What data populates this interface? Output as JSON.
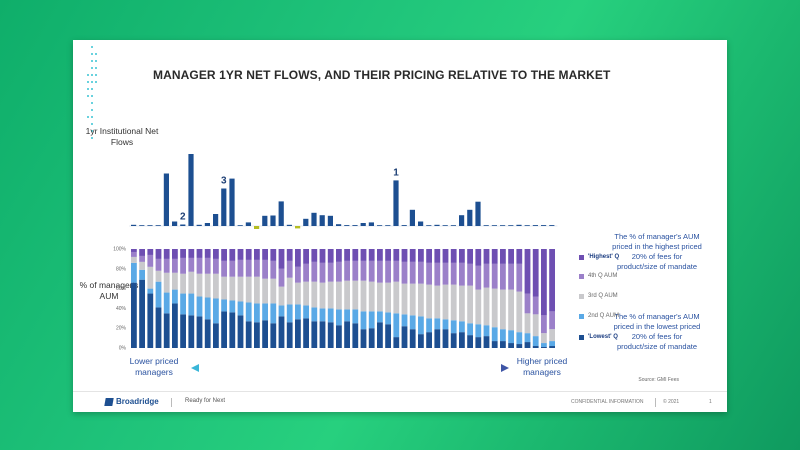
{
  "title": "MANAGER 1YR NET FLOWS, AND THEIR PRICING RELATIVE TO THE MARKET",
  "top_ylabel": "1yr Institutional Net Flows",
  "bottom_ylabel": "% of manager's AUM",
  "right_note_top": "The % of manager's AUM priced in the highest priced 20% of fees for product/size of mandate",
  "right_note_bottom": "The % of manager's AUM priced in the lowest priced 20% of fees for product/size of mandate",
  "arrow_left": "Lower priced managers",
  "arrow_right": "Higher priced managers",
  "source": "Source: GMI Fees",
  "footer": {
    "brand": "Broadridge",
    "tagline": "Ready for Next",
    "confidential": "CONFIDENTIAL INFORMATION",
    "copyright": "© 2021",
    "page": "1"
  },
  "colors": {
    "flow_positive": "#1d4f91",
    "flow_negative": "#b5bd22",
    "q_lowest": "#1d4f91",
    "q_2nd": "#5aa9e6",
    "q_3rd": "#c9c9cc",
    "q_4th": "#9b80c9",
    "q_highest": "#6e4fb2",
    "arrow": "#3e55a6"
  },
  "chart_data": [
    {
      "type": "bar",
      "title": "",
      "ylabel": "1yr Institutional Net Flows",
      "annotations": [
        {
          "label": "2",
          "index": 6
        },
        {
          "label": "3",
          "index": 11
        },
        {
          "label": "1",
          "index": 32
        }
      ],
      "values": [
        0.4,
        0.1,
        0.1,
        0.1,
        17.5,
        1.5,
        0.5,
        24.0,
        0.4,
        1.0,
        4.0,
        12.5,
        15.8,
        0.1,
        1.2,
        -1.0,
        3.4,
        3.5,
        8.2,
        0.4,
        -0.8,
        2.4,
        4.4,
        3.6,
        3.4,
        0.6,
        0.3,
        0.3,
        1.0,
        1.2,
        0.1,
        0.2,
        15.2,
        0.3,
        5.4,
        1.5,
        0.2,
        0.4,
        0.2,
        0.2,
        3.6,
        5.4,
        8.1,
        0.2,
        0.2,
        0.2,
        0.1,
        0.4,
        0.2,
        0.3,
        0.3,
        0.3
      ],
      "ylim": [
        -2,
        26
      ]
    },
    {
      "type": "bar",
      "stacked": true,
      "ylabel": "% of manager's AUM",
      "ylim": [
        0,
        100
      ],
      "yticks": [
        "0%",
        "20%",
        "40%",
        "60%",
        "80%",
        "100%"
      ],
      "series": [
        {
          "name": "'Lowest' Q",
          "values": [
            66,
            69,
            55,
            41,
            35,
            45,
            34,
            33,
            32,
            29,
            25,
            37,
            36,
            33,
            27,
            26,
            28,
            25,
            32,
            26,
            29,
            30,
            27,
            27,
            26,
            23,
            27,
            25,
            19,
            20,
            26,
            24,
            11,
            22,
            19,
            14,
            16,
            19,
            19,
            15,
            16,
            13,
            11,
            12,
            7,
            7,
            5,
            4,
            6,
            2,
            1,
            2
          ]
        },
        {
          "name": "2nd Q AUM",
          "values": [
            20,
            10,
            5,
            26,
            21,
            14,
            21,
            22,
            20,
            22,
            25,
            12,
            12,
            14,
            19,
            19,
            17,
            20,
            11,
            18,
            15,
            13,
            14,
            13,
            14,
            16,
            12,
            14,
            18,
            17,
            11,
            12,
            24,
            12,
            14,
            18,
            14,
            11,
            10,
            13,
            11,
            12,
            13,
            11,
            14,
            12,
            13,
            12,
            9,
            10,
            4,
            5
          ]
        },
        {
          "name": "3rd Q AUM",
          "values": [
            6,
            8,
            22,
            11,
            20,
            17,
            20,
            22,
            23,
            24,
            25,
            23,
            24,
            25,
            26,
            27,
            25,
            25,
            19,
            27,
            22,
            24,
            26,
            26,
            27,
            28,
            29,
            29,
            31,
            30,
            29,
            30,
            32,
            31,
            32,
            33,
            34,
            33,
            35,
            36,
            36,
            38,
            35,
            38,
            39,
            40,
            41,
            41,
            20,
            22,
            10,
            12
          ]
        },
        {
          "name": "4th Q AUM",
          "values": [
            5,
            6,
            12,
            12,
            14,
            14,
            16,
            14,
            16,
            16,
            15,
            16,
            16,
            17,
            17,
            17,
            19,
            18,
            18,
            17,
            16,
            18,
            20,
            20,
            19,
            20,
            20,
            20,
            20,
            21,
            22,
            22,
            21,
            22,
            22,
            22,
            22,
            23,
            22,
            22,
            23,
            22,
            24,
            24,
            25,
            26,
            26,
            28,
            20,
            18,
            18,
            18
          ]
        },
        {
          "name": "'Highest' Q",
          "values": [
            3,
            7,
            6,
            10,
            10,
            10,
            9,
            9,
            9,
            9,
            10,
            12,
            12,
            11,
            11,
            11,
            11,
            12,
            20,
            12,
            18,
            15,
            13,
            14,
            14,
            13,
            12,
            12,
            12,
            12,
            12,
            12,
            12,
            13,
            13,
            13,
            14,
            14,
            14,
            14,
            14,
            15,
            17,
            15,
            15,
            15,
            15,
            15,
            45,
            48,
            67,
            63
          ]
        }
      ]
    }
  ]
}
